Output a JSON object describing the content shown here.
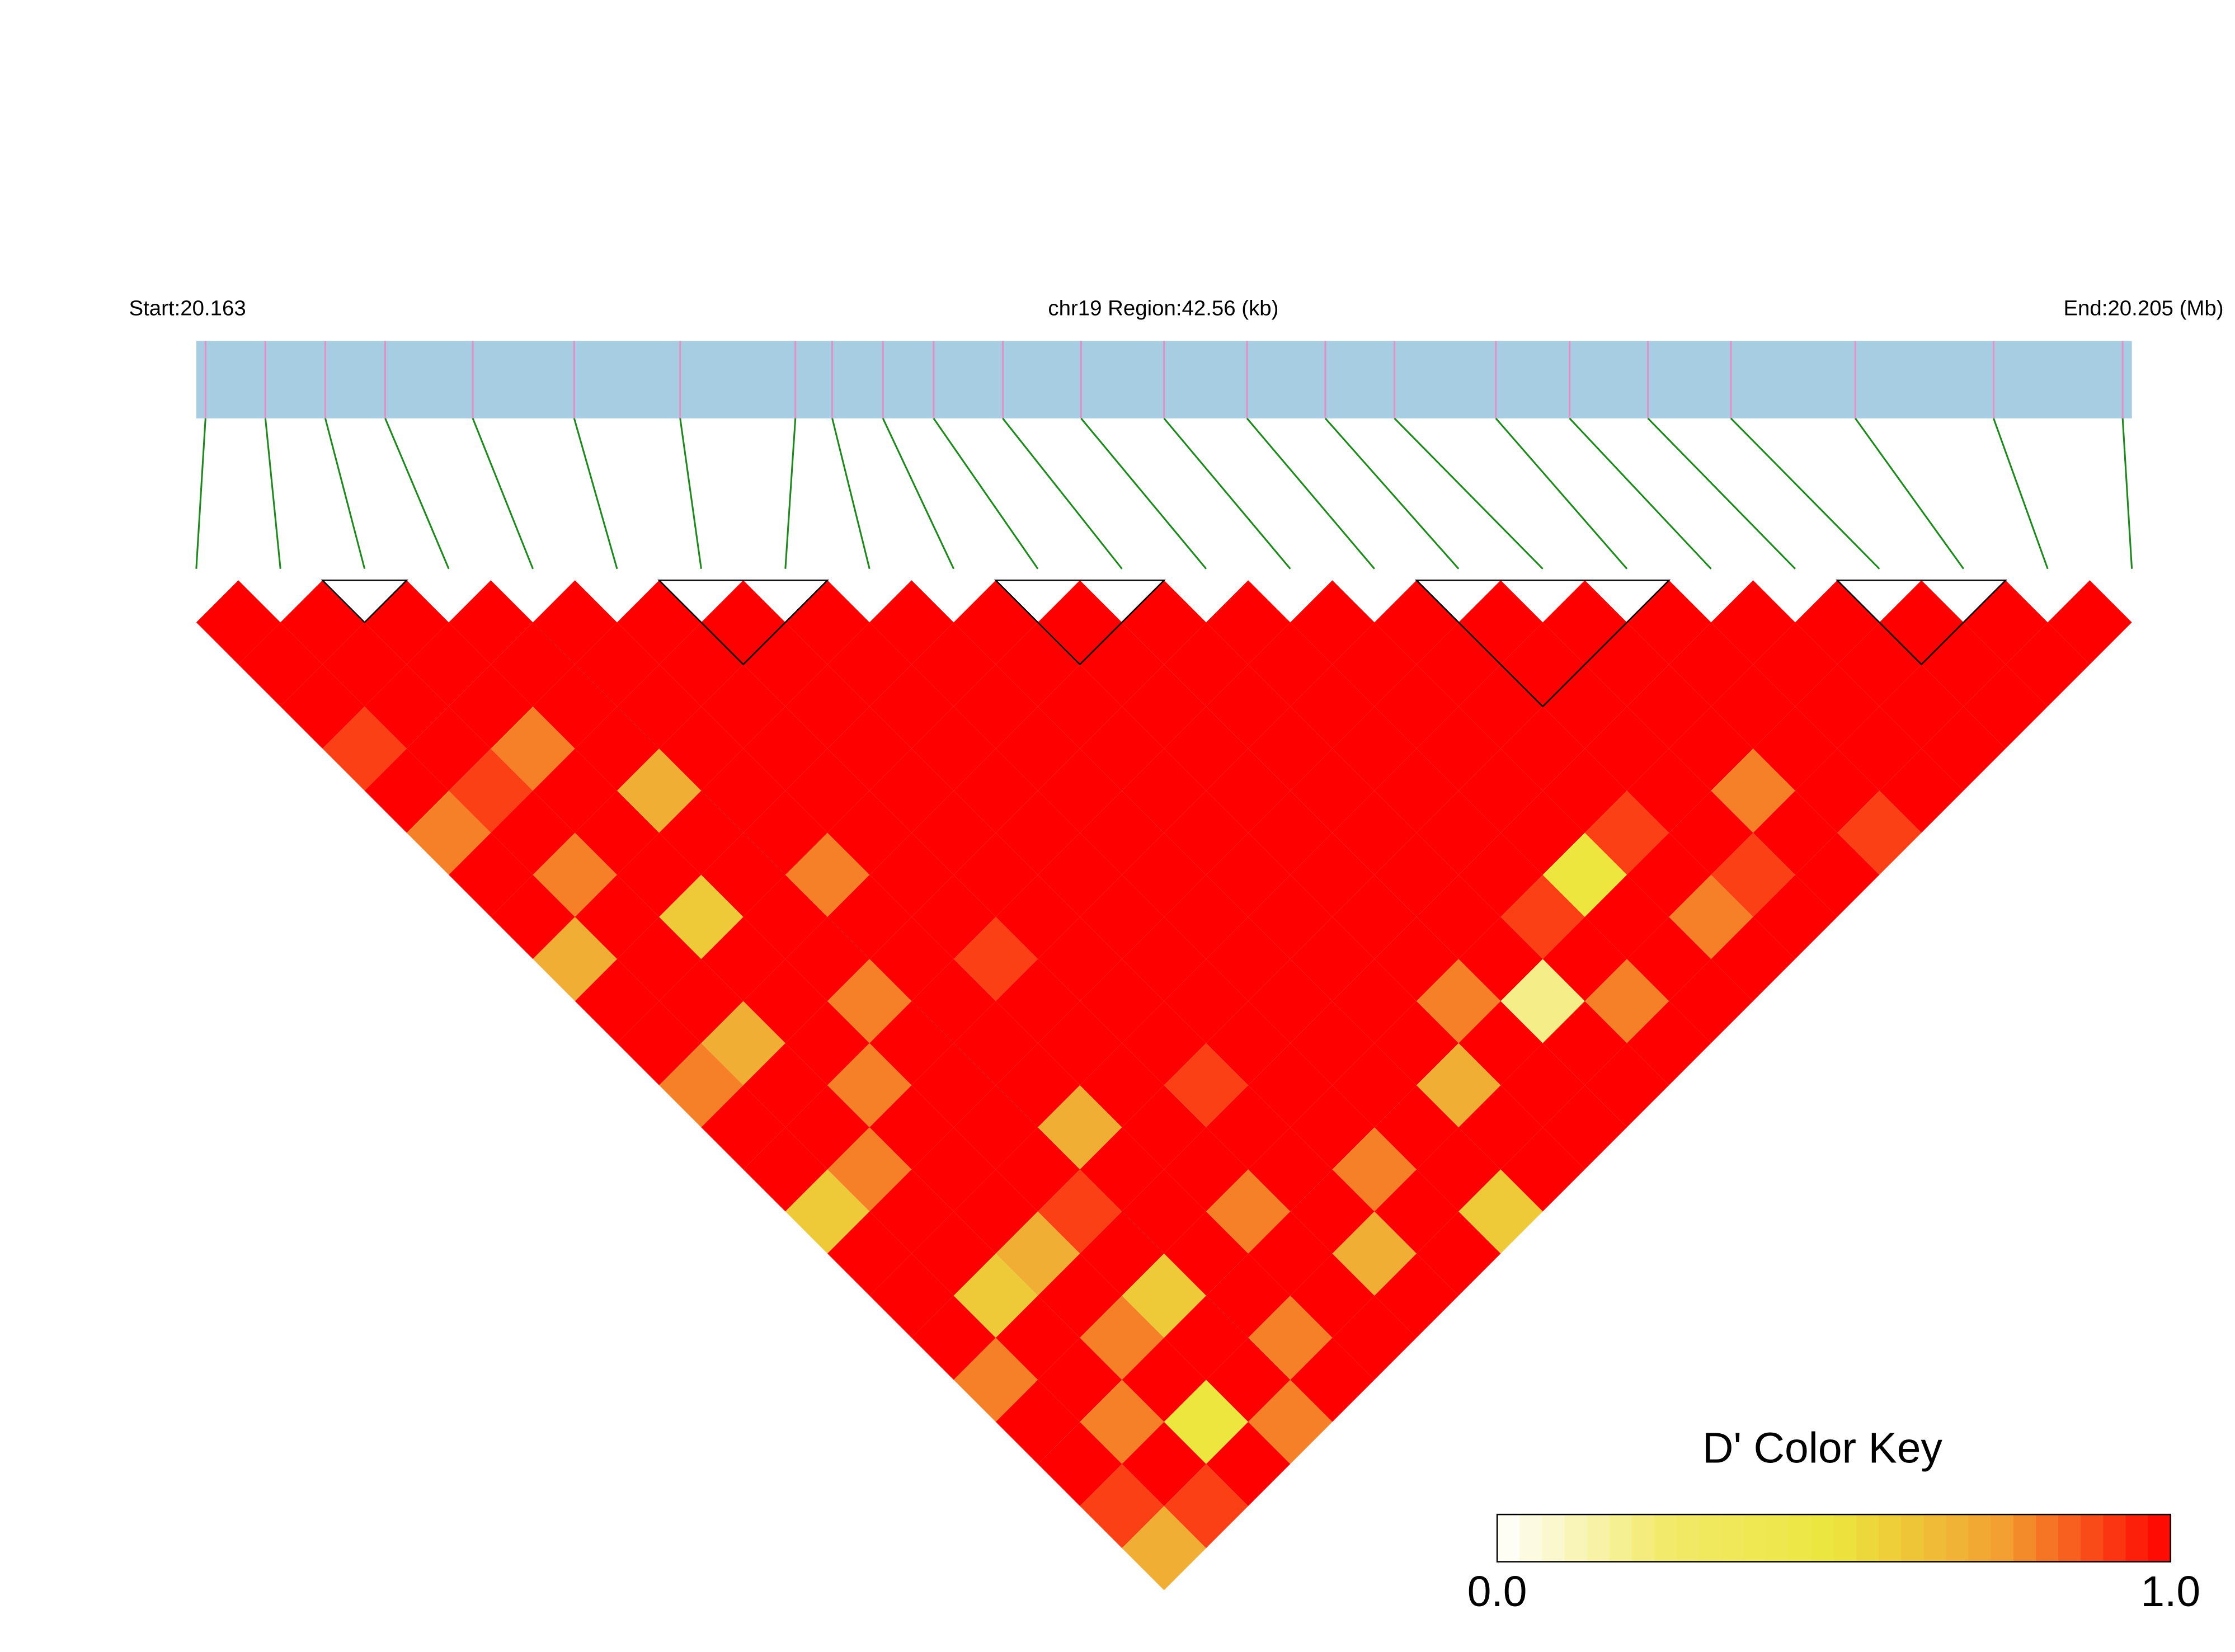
{
  "chart_data": {
    "type": "ld_heatmap",
    "start_label": "Start:20.163",
    "region_label": "chr19 Region:42.56 (kb)",
    "end_label": "End:20.205 (Mb)",
    "xlim": [
      20.163,
      20.205
    ],
    "positions": [
      20.1632,
      20.1645,
      20.1658,
      20.1671,
      20.169,
      20.1712,
      20.1735,
      20.176,
      20.1768,
      20.1779,
      20.179,
      20.1805,
      20.1822,
      20.184,
      20.1858,
      20.1875,
      20.189,
      20.1912,
      20.1928,
      20.1945,
      20.1963,
      20.199,
      20.202,
      20.2048
    ],
    "bar_color": "#a6cde2",
    "marker_color": "#e58fc6",
    "connector_color": "#1a8a1a",
    "blocks": [
      [
        1,
        2
      ],
      [
        5,
        7
      ],
      [
        9,
        11
      ],
      [
        14,
        17
      ],
      [
        19,
        21
      ]
    ],
    "matrix": [
      [
        1,
        1,
        1,
        0.9,
        1,
        0.8,
        1,
        1,
        0.7,
        1,
        1,
        0.8,
        1,
        1,
        0.6,
        1,
        1,
        1,
        0.8,
        1,
        1,
        0.9,
        0.7
      ],
      [
        1,
        1,
        1,
        1,
        0.9,
        1,
        0.8,
        1,
        1,
        1,
        0.7,
        1,
        1,
        0.8,
        1,
        1,
        0.6,
        1,
        1,
        0.8,
        1,
        0.9
      ],
      [
        1,
        1,
        1,
        0.8,
        1,
        1,
        1,
        0.6,
        1,
        1,
        1,
        0.8,
        1,
        1,
        1,
        0.7,
        1,
        0.8,
        1,
        0.5,
        1
      ],
      [
        1,
        1,
        1,
        1,
        0.7,
        1,
        1,
        1,
        1,
        0.8,
        1,
        1,
        1,
        1,
        0.9,
        1,
        0.6,
        1,
        1,
        0.8
      ],
      [
        1,
        1,
        1,
        1,
        1,
        1,
        0.8,
        1,
        1,
        1,
        1,
        1,
        0.7,
        1,
        1,
        1,
        1,
        0.8,
        1
      ],
      [
        1,
        1,
        1,
        1,
        1,
        1,
        1,
        1,
        0.9,
        1,
        1,
        1,
        1,
        1,
        0.8,
        1,
        1,
        1
      ],
      [
        1,
        1,
        1,
        1,
        1,
        1,
        1,
        1,
        1,
        1,
        1,
        0.9,
        1,
        1,
        1,
        0.7,
        1
      ],
      [
        1,
        1,
        1,
        1,
        1,
        1,
        1,
        1,
        1,
        1,
        1,
        1,
        1,
        0.8,
        1,
        1
      ],
      [
        1,
        1,
        1,
        1,
        1,
        1,
        1,
        1,
        1,
        1,
        1,
        1,
        1,
        1,
        0.6
      ],
      [
        1,
        1,
        1,
        1,
        1,
        1,
        1,
        1,
        1,
        1,
        1,
        0.7,
        1,
        1
      ],
      [
        1,
        1,
        1,
        1,
        1,
        1,
        1,
        1,
        1,
        0.8,
        1,
        1,
        1
      ],
      [
        1,
        1,
        1,
        1,
        1,
        1,
        1,
        1,
        1,
        0.2,
        1,
        1
      ],
      [
        1,
        1,
        1,
        1,
        1,
        1,
        1,
        0.9,
        1,
        0.8,
        1
      ],
      [
        1,
        1,
        1,
        1,
        1,
        1,
        0.5,
        1,
        1,
        1
      ],
      [
        1,
        1,
        1,
        1,
        1,
        0.9,
        1,
        0.8,
        1
      ],
      [
        1,
        1,
        1,
        1,
        1,
        1,
        0.9,
        1
      ],
      [
        1,
        1,
        1,
        1,
        0.8,
        1,
        1
      ],
      [
        1,
        1,
        1,
        1,
        1,
        0.9
      ],
      [
        1,
        1,
        1,
        1,
        1
      ],
      [
        1,
        1,
        1,
        1
      ],
      [
        1,
        1,
        1
      ],
      [
        1,
        1
      ],
      [
        1
      ]
    ],
    "colorkey_title": "D' Color Key",
    "colorkey_lim": [
      0,
      1
    ],
    "colorkey_ticks": [
      {
        "value": 0,
        "label": "0.0"
      },
      {
        "value": 1,
        "label": "1.0"
      }
    ],
    "colorscale": [
      "#ffffff",
      "#f2ea6a",
      "#ece63e",
      "#f2a032",
      "#ff0000"
    ]
  }
}
